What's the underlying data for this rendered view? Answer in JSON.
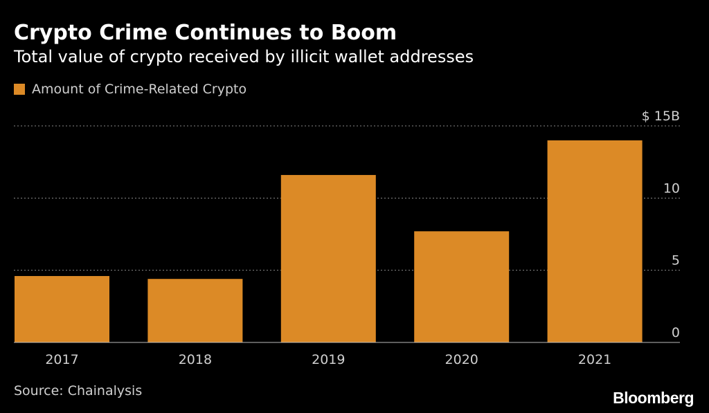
{
  "header": {
    "title": "Crypto Crime Continues to Boom",
    "subtitle": "Total value of crypto received by illicit wallet addresses"
  },
  "legend": {
    "label": "Amount of Crime-Related Crypto",
    "color": "#dc8a26"
  },
  "footer": {
    "source": "Source: Chainalysis",
    "brand": "Bloomberg"
  },
  "colors": {
    "background": "#000000",
    "bar": "#dc8a26",
    "grid": "#8a8a8a",
    "axis_text": "#d0d0d0"
  },
  "chart_data": {
    "type": "bar",
    "categories": [
      "2017",
      "2018",
      "2019",
      "2020",
      "2021"
    ],
    "series": [
      {
        "name": "Amount of Crime-Related Crypto",
        "values": [
          4.6,
          4.4,
          11.6,
          7.7,
          14.0
        ]
      }
    ],
    "ylim": [
      0,
      15
    ],
    "yticks": [
      0,
      5,
      10,
      15
    ],
    "ytick_labels": [
      "0",
      "5",
      "10",
      "$ 15B"
    ],
    "xlabel": "",
    "ylabel": "",
    "grid": true,
    "y_axis_side": "right"
  }
}
